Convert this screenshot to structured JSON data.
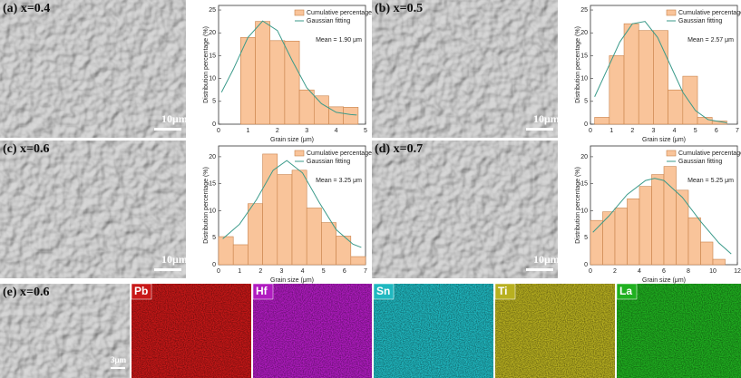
{
  "chart_data": [
    {
      "type": "histogram",
      "xlabel": "Grain size (μm)",
      "ylabel": "Distribution percentage (%)",
      "annotation": "Mean = 1.90 μm",
      "bins": [
        0.75,
        1.25,
        1.75,
        2.25,
        2.75,
        3.25,
        3.75,
        4.25,
        4.75
      ],
      "series": [
        {
          "name": "Cumulative percentage",
          "color": "#f9c49a",
          "values": [
            19,
            22.5,
            18.3,
            18.2,
            7.5,
            6.2,
            3.8,
            3.7
          ]
        },
        {
          "name": "Gaussian fitting",
          "color": "#3a9a8a",
          "x": [
            0.1,
            0.5,
            1,
            1.5,
            2,
            2.5,
            3,
            3.5,
            4,
            4.5,
            4.7
          ],
          "values": [
            7,
            12,
            19,
            22.6,
            20.5,
            14,
            8,
            4.5,
            2.6,
            2.1,
            2.0
          ]
        }
      ],
      "xlim": [
        0,
        5
      ],
      "xticks": [
        0,
        1,
        2,
        3,
        4,
        5
      ],
      "ylim": [
        0,
        26
      ],
      "yticks": [
        0,
        5,
        10,
        15,
        20,
        25
      ]
    },
    {
      "type": "histogram",
      "xlabel": "Grain size (μm)",
      "ylabel": "Distribution percentage (%)",
      "annotation": "Mean = 2.57 μm",
      "bins": [
        0.2,
        0.9,
        1.6,
        2.3,
        3.0,
        3.7,
        4.4,
        5.1,
        5.8,
        6.5
      ],
      "series": [
        {
          "name": "Cumulative percentage",
          "color": "#f9c49a",
          "values": [
            1.5,
            15,
            22,
            20.5,
            20.5,
            7.5,
            10.5,
            1.5,
            0.7
          ]
        },
        {
          "name": "Gaussian fitting",
          "color": "#3a9a8a",
          "x": [
            0.2,
            0.8,
            1.4,
            2.0,
            2.6,
            3.2,
            3.8,
            4.4,
            5.0,
            5.6,
            6.5
          ],
          "values": [
            6,
            12,
            18,
            22,
            22.5,
            19,
            13,
            7,
            3,
            1,
            0.3
          ]
        }
      ],
      "xlim": [
        0,
        7
      ],
      "xticks": [
        0,
        1,
        2,
        3,
        4,
        5,
        6,
        7
      ],
      "ylim": [
        0,
        26
      ],
      "yticks": [
        0,
        5,
        10,
        15,
        20,
        25
      ]
    },
    {
      "type": "histogram",
      "xlabel": "Grain size (μm)",
      "ylabel": "Distribution percentage (%)",
      "annotation": "Mean = 3.25 μm",
      "bins": [
        0,
        0.7,
        1.4,
        2.1,
        2.8,
        3.5,
        4.2,
        4.9,
        5.6,
        6.3,
        7.0
      ],
      "series": [
        {
          "name": "Cumulative percentage",
          "color": "#f9c49a",
          "values": [
            5.2,
            3.7,
            11.3,
            20.5,
            16.7,
            17.5,
            10.5,
            7.8,
            5.3,
            1.5
          ]
        },
        {
          "name": "Gaussian fitting",
          "color": "#3a9a8a",
          "x": [
            0.2,
            1,
            1.8,
            2.6,
            3.25,
            4,
            4.8,
            5.6,
            6.4,
            6.8
          ],
          "values": [
            4.8,
            7.5,
            12,
            17.5,
            19.3,
            17,
            11.5,
            6.5,
            3.8,
            3.2
          ]
        }
      ],
      "xlim": [
        0,
        7
      ],
      "xticks": [
        0,
        1,
        2,
        3,
        4,
        5,
        6,
        7
      ],
      "ylim": [
        0,
        22
      ],
      "yticks": [
        0,
        5,
        10,
        15,
        20
      ]
    },
    {
      "type": "histogram",
      "xlabel": "Grain size (μm)",
      "ylabel": "Distribution percentage (%)",
      "annotation": "Mean = 5.25 μm",
      "bins": [
        0,
        1,
        2,
        3,
        4,
        5,
        6,
        7,
        8,
        9,
        10,
        11
      ],
      "series": [
        {
          "name": "Cumulative percentage",
          "color": "#f9c49a",
          "values": [
            8.2,
            9.8,
            10.5,
            12.2,
            14.5,
            16.7,
            18.2,
            13.8,
            8.7,
            4.2,
            1.0
          ]
        },
        {
          "name": "Gaussian fitting",
          "color": "#3a9a8a",
          "x": [
            0.2,
            1.5,
            3,
            4.5,
            5.25,
            6,
            7.5,
            9,
            10.5,
            11.5
          ],
          "values": [
            6,
            9,
            13,
            15.6,
            16,
            15.6,
            12.5,
            8,
            4,
            2
          ]
        }
      ],
      "xlim": [
        0,
        12
      ],
      "xticks": [
        0,
        2,
        4,
        6,
        8,
        10,
        12
      ],
      "ylim": [
        0,
        22
      ],
      "yticks": [
        0,
        5,
        10,
        15,
        20
      ]
    }
  ],
  "panels": [
    {
      "label": "(a) x=0.4",
      "scale_bar": "10μm"
    },
    {
      "label": "(b) x=0.5",
      "scale_bar": "10μm"
    },
    {
      "label": "(c) x=0.6",
      "scale_bar": "10μm"
    },
    {
      "label": "(d) x=0.7",
      "scale_bar": "10μm"
    }
  ],
  "eds": {
    "label": "(e) x=0.6",
    "scale_bar": "3μm",
    "maps": [
      {
        "element": "Pb",
        "color": "#c81818"
      },
      {
        "element": "Hf",
        "color": "#b01cc0"
      },
      {
        "element": "Sn",
        "color": "#20b8c0"
      },
      {
        "element": "Ti",
        "color": "#b8b020"
      },
      {
        "element": "La",
        "color": "#20b020"
      }
    ]
  }
}
